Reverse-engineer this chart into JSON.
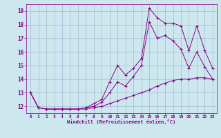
{
  "xlabel": "Windchill (Refroidissement éolien,°C)",
  "background_color": "#cce8ee",
  "line_color": "#880088",
  "grid_color": "#99aacc",
  "xlim": [
    -0.5,
    23.5
  ],
  "ylim": [
    11.5,
    19.5
  ],
  "yticks": [
    12,
    13,
    14,
    15,
    16,
    17,
    18,
    19
  ],
  "xticks": [
    0,
    1,
    2,
    3,
    4,
    5,
    6,
    7,
    8,
    9,
    10,
    11,
    12,
    13,
    14,
    15,
    16,
    17,
    18,
    19,
    20,
    21,
    22,
    23
  ],
  "line1_x": [
    0,
    1,
    2,
    3,
    4,
    5,
    6,
    7,
    8,
    9,
    10,
    11,
    12,
    13,
    14,
    15,
    16,
    17,
    18,
    19,
    20,
    21,
    22,
    23
  ],
  "line1_y": [
    13.0,
    11.9,
    11.8,
    11.8,
    11.8,
    11.8,
    11.8,
    11.9,
    12.2,
    12.5,
    13.8,
    15.0,
    14.3,
    14.8,
    15.5,
    19.2,
    18.5,
    18.1,
    18.1,
    17.9,
    16.1,
    17.9,
    16.1,
    14.8
  ],
  "line2_x": [
    0,
    1,
    2,
    3,
    4,
    5,
    6,
    7,
    8,
    9,
    10,
    11,
    12,
    13,
    14,
    15,
    16,
    17,
    18,
    19,
    20,
    21,
    22,
    23
  ],
  "line2_y": [
    13.0,
    11.9,
    11.8,
    11.8,
    11.8,
    11.8,
    11.8,
    11.9,
    12.0,
    12.3,
    13.0,
    13.8,
    13.5,
    14.2,
    15.0,
    18.2,
    17.0,
    17.2,
    16.8,
    16.2,
    14.8,
    16.0,
    14.9,
    14.0
  ],
  "line3_x": [
    0,
    1,
    2,
    3,
    4,
    5,
    6,
    7,
    8,
    9,
    10,
    11,
    12,
    13,
    14,
    15,
    16,
    17,
    18,
    19,
    20,
    21,
    22,
    23
  ],
  "line3_y": [
    13.0,
    11.9,
    11.8,
    11.8,
    11.8,
    11.8,
    11.8,
    11.8,
    11.9,
    12.0,
    12.2,
    12.4,
    12.6,
    12.8,
    13.0,
    13.2,
    13.5,
    13.7,
    13.9,
    14.0,
    14.0,
    14.1,
    14.1,
    14.0
  ]
}
